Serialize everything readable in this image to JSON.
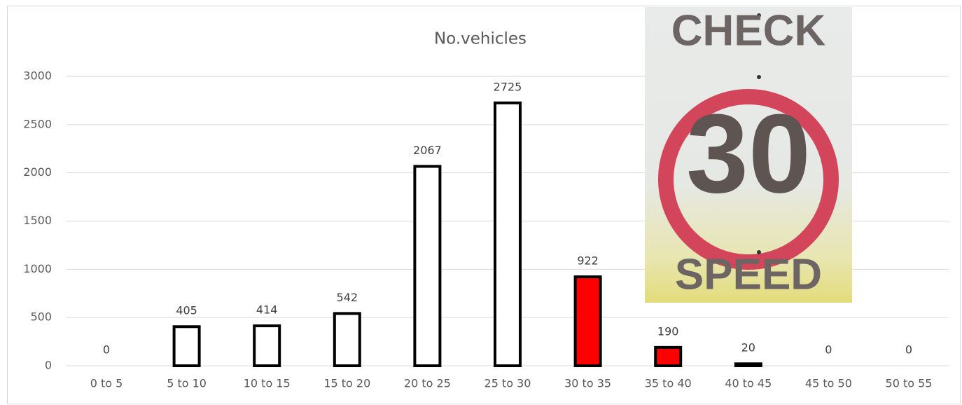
{
  "chart_data": {
    "type": "bar",
    "title": "No.vehicles",
    "categories": [
      "0 to 5",
      "5 to 10",
      "10 to 15",
      "15 to 20",
      "20 to 25",
      "25 to 30",
      "30 to 35",
      "35 to 40",
      "40 to 45",
      "45 to 50",
      "50 to 55"
    ],
    "values": [
      0,
      405,
      414,
      542,
      2067,
      2725,
      922,
      190,
      20,
      0,
      0
    ],
    "colors": [
      "#ffffff",
      "#ffffff",
      "#ffffff",
      "#ffffff",
      "#ffffff",
      "#ffffff",
      "#ff0000",
      "#ff0000",
      "#ffffff",
      "#ffffff",
      "#ffffff"
    ],
    "edge_color": "#000000",
    "ylim": [
      0,
      3000
    ],
    "yticks": [
      0,
      500,
      1000,
      1500,
      2000,
      2500,
      3000
    ],
    "grid": true
  },
  "sign": {
    "lines": [
      "CHECK",
      "30",
      "SPEED"
    ]
  }
}
